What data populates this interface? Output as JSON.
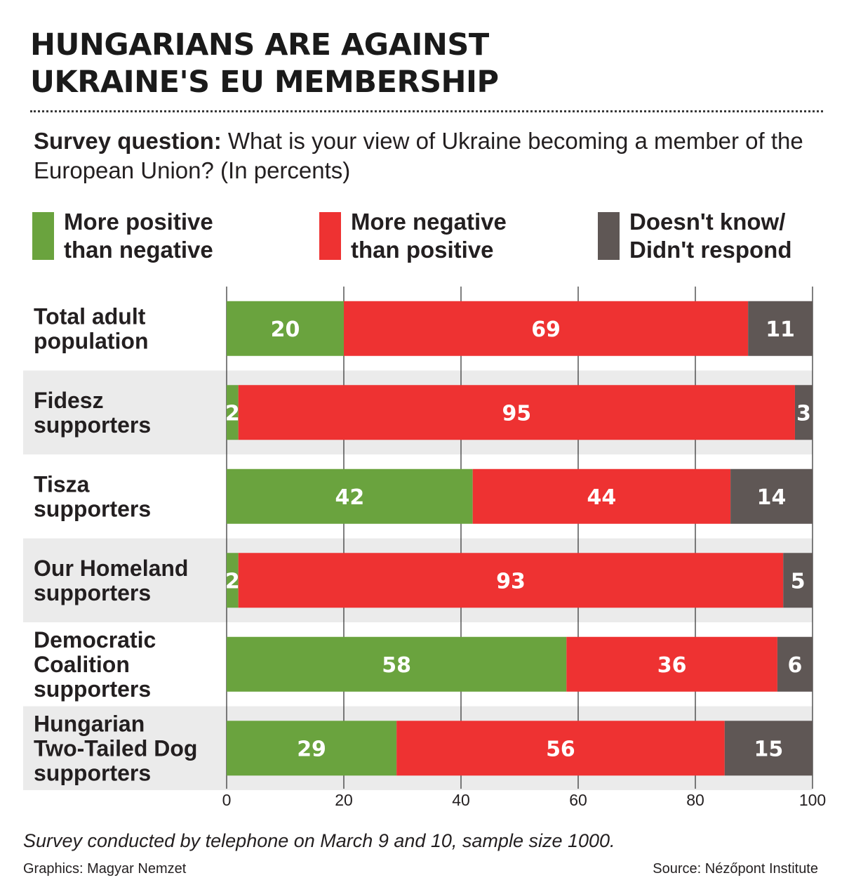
{
  "title_lines": [
    "HUNGARIANS ARE AGAINST",
    "UKRAINE'S EU MEMBERSHIP"
  ],
  "question": {
    "label": "Survey question:",
    "text": "What is your view of Ukraine becoming a member of the  European Union? (In percents)"
  },
  "colors": {
    "positive": "#6aa33e",
    "negative": "#ee3232",
    "unknown": "#5f5755",
    "row_band": "#ebebeb"
  },
  "legend": [
    {
      "key": "positive",
      "lines": [
        "More positive",
        "than negative"
      ]
    },
    {
      "key": "negative",
      "lines": [
        "More negative",
        "than positive"
      ]
    },
    {
      "key": "unknown",
      "lines": [
        "Doesn't know/",
        "Didn't respond"
      ]
    }
  ],
  "chart_data": {
    "type": "bar",
    "orientation": "horizontal",
    "stacked": true,
    "categories": [
      [
        "Total adult",
        "population"
      ],
      [
        "Fidesz",
        "supporters"
      ],
      [
        "Tisza",
        "supporters"
      ],
      [
        "Our Homeland",
        "supporters"
      ],
      [
        "Democratic",
        "Coalition",
        "supporters"
      ],
      [
        "Hungarian",
        "Two-Tailed Dog",
        "supporters"
      ]
    ],
    "series": [
      {
        "name": "More positive than negative",
        "key": "positive",
        "values": [
          20,
          2,
          42,
          2,
          58,
          29
        ]
      },
      {
        "name": "More negative than positive",
        "key": "negative",
        "values": [
          69,
          95,
          44,
          93,
          36,
          56
        ]
      },
      {
        "name": "Doesn't know/Didn't respond",
        "key": "unknown",
        "values": [
          11,
          3,
          14,
          5,
          6,
          15
        ]
      }
    ],
    "xlim": [
      0,
      100
    ],
    "xticks": [
      "0",
      "20",
      "40",
      "60",
      "80",
      "100"
    ],
    "grid": true,
    "legend_position": "top",
    "alternating_row_bands": true
  },
  "footer": {
    "note": "Survey conducted by telephone on March 9 and 10, sample size 1000.",
    "credit": "Graphics: Magyar Nemzet",
    "source": "Source: Nézőpont Institute"
  }
}
